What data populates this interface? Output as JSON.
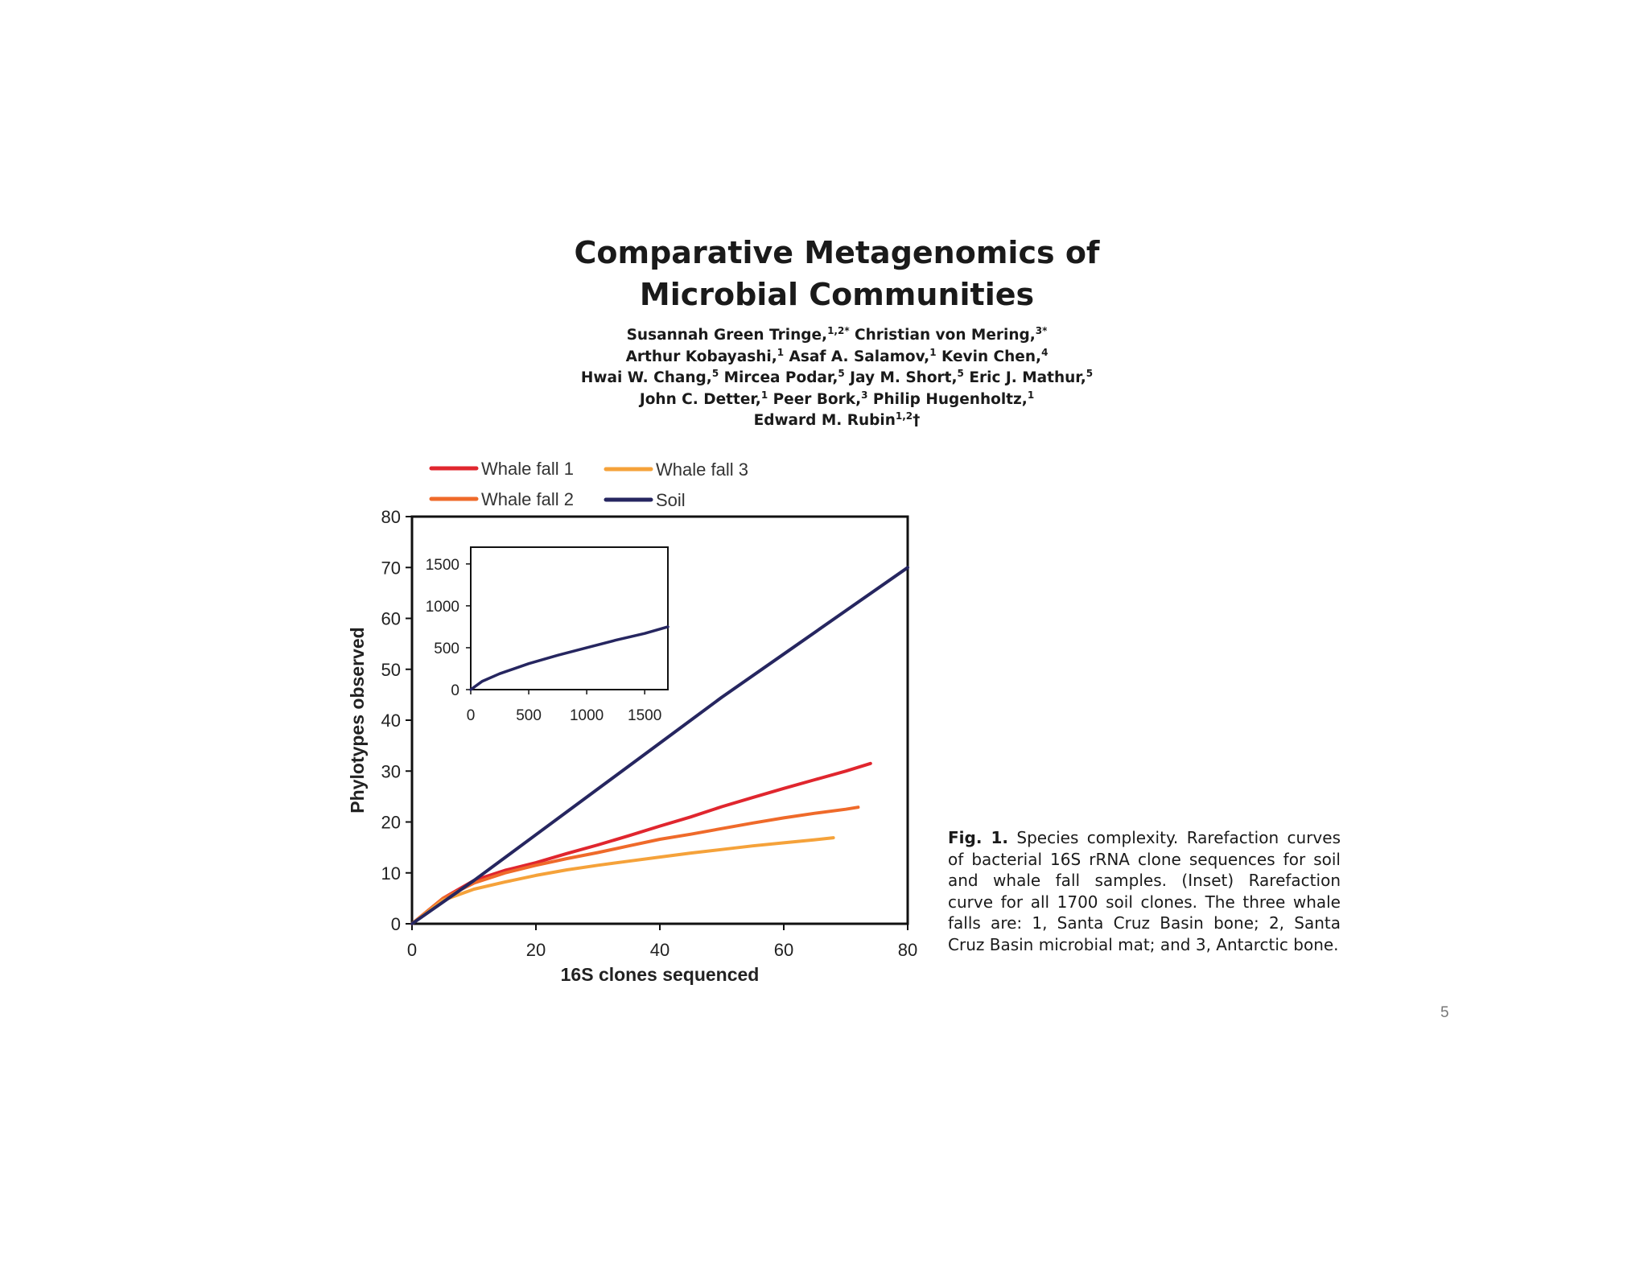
{
  "paper": {
    "title_line1": "Comparative Metagenomics of",
    "title_line2": "Microbial Communities",
    "authors": [
      {
        "parts": [
          {
            "text": "Susannah Green Tringe,"
          },
          {
            "text": "1,2*",
            "sup": true
          },
          {
            "text": " Christian von Mering,"
          },
          {
            "text": "3*",
            "sup": true
          }
        ]
      },
      {
        "parts": [
          {
            "text": "Arthur Kobayashi,"
          },
          {
            "text": "1",
            "sup": true
          },
          {
            "text": " Asaf A. Salamov,"
          },
          {
            "text": "1",
            "sup": true
          },
          {
            "text": " Kevin Chen,"
          },
          {
            "text": "4",
            "sup": true
          }
        ]
      },
      {
        "parts": [
          {
            "text": "Hwai W. Chang,"
          },
          {
            "text": "5",
            "sup": true
          },
          {
            "text": " Mircea Podar,"
          },
          {
            "text": "5",
            "sup": true
          },
          {
            "text": " Jay M. Short,"
          },
          {
            "text": "5",
            "sup": true
          },
          {
            "text": " Eric J. Mathur,"
          },
          {
            "text": "5",
            "sup": true
          }
        ]
      },
      {
        "parts": [
          {
            "text": "John C. Detter,"
          },
          {
            "text": "1",
            "sup": true
          },
          {
            "text": " Peer Bork,"
          },
          {
            "text": "3",
            "sup": true
          },
          {
            "text": " Philip Hugenholtz,"
          },
          {
            "text": "1",
            "sup": true
          }
        ]
      },
      {
        "parts": [
          {
            "text": "Edward M. Rubin"
          },
          {
            "text": "1,2",
            "sup": true
          },
          {
            "text": "†"
          }
        ]
      }
    ]
  },
  "caption": {
    "lead": "Fig. 1.",
    "text": " Species complexity. Rarefaction curves of bacterial 16S rRNA clone sequences for soil and whale fall samples. (Inset) Rarefaction curve for all 1700 soil clones. The three whale falls are: 1, Santa Cruz Basin bone; 2, Santa Cruz Basin microbial mat; and 3, Antarctic bone."
  },
  "page_number": "5",
  "chart_data": [
    {
      "type": "line",
      "title": "",
      "xlabel": "16S clones sequenced",
      "ylabel": "Phylotypes observed",
      "xlim": [
        0,
        80
      ],
      "ylim": [
        0,
        80
      ],
      "xticks": [
        "0",
        "20",
        "40",
        "60",
        "80"
      ],
      "yticks": [
        "0",
        "10",
        "20",
        "30",
        "40",
        "50",
        "60",
        "70",
        "80"
      ],
      "legend_position": "top",
      "series": [
        {
          "name": "Whale fall 1",
          "color": "#e0262e",
          "x": [
            0,
            5,
            10,
            15,
            20,
            25,
            30,
            35,
            40,
            45,
            50,
            55,
            60,
            65,
            70,
            74
          ],
          "y": [
            0,
            5,
            8.5,
            10.5,
            12,
            13.8,
            15.5,
            17.3,
            19.2,
            21,
            23,
            24.8,
            26.6,
            28.3,
            30,
            31.5
          ]
        },
        {
          "name": "Whale fall 2",
          "color": "#ef6a2a",
          "x": [
            0,
            5,
            10,
            15,
            20,
            25,
            30,
            35,
            40,
            45,
            50,
            55,
            60,
            65,
            70,
            72
          ],
          "y": [
            0,
            5,
            8,
            10,
            11.5,
            12.8,
            14,
            15.3,
            16.6,
            17.6,
            18.7,
            19.8,
            20.8,
            21.7,
            22.5,
            22.9
          ]
        },
        {
          "name": "Whale fall 3",
          "color": "#f5a23a",
          "x": [
            0,
            5,
            10,
            15,
            20,
            25,
            30,
            35,
            40,
            45,
            50,
            55,
            60,
            65,
            68
          ],
          "y": [
            0,
            4.6,
            6.8,
            8.2,
            9.5,
            10.6,
            11.5,
            12.3,
            13.1,
            13.9,
            14.6,
            15.3,
            15.9,
            16.5,
            16.9
          ]
        },
        {
          "name": "Soil",
          "color": "#262660",
          "x": [
            0,
            10,
            20,
            30,
            40,
            50,
            60,
            70,
            80
          ],
          "y": [
            0,
            8.5,
            17.5,
            26.5,
            35.5,
            44.5,
            53,
            61.5,
            70
          ]
        }
      ]
    },
    {
      "type": "line",
      "title": "Inset",
      "xlabel": "",
      "ylabel": "",
      "xlim": [
        0,
        1700
      ],
      "ylim": [
        0,
        1700
      ],
      "xticks": [
        "0",
        "500",
        "1000",
        "1500"
      ],
      "yticks": [
        "0",
        "500",
        "1000",
        "1500"
      ],
      "series": [
        {
          "name": "Soil",
          "color": "#262660",
          "x": [
            0,
            100,
            250,
            500,
            750,
            1000,
            1250,
            1500,
            1700
          ],
          "y": [
            0,
            100,
            190,
            310,
            410,
            500,
            590,
            670,
            750
          ]
        }
      ]
    }
  ]
}
